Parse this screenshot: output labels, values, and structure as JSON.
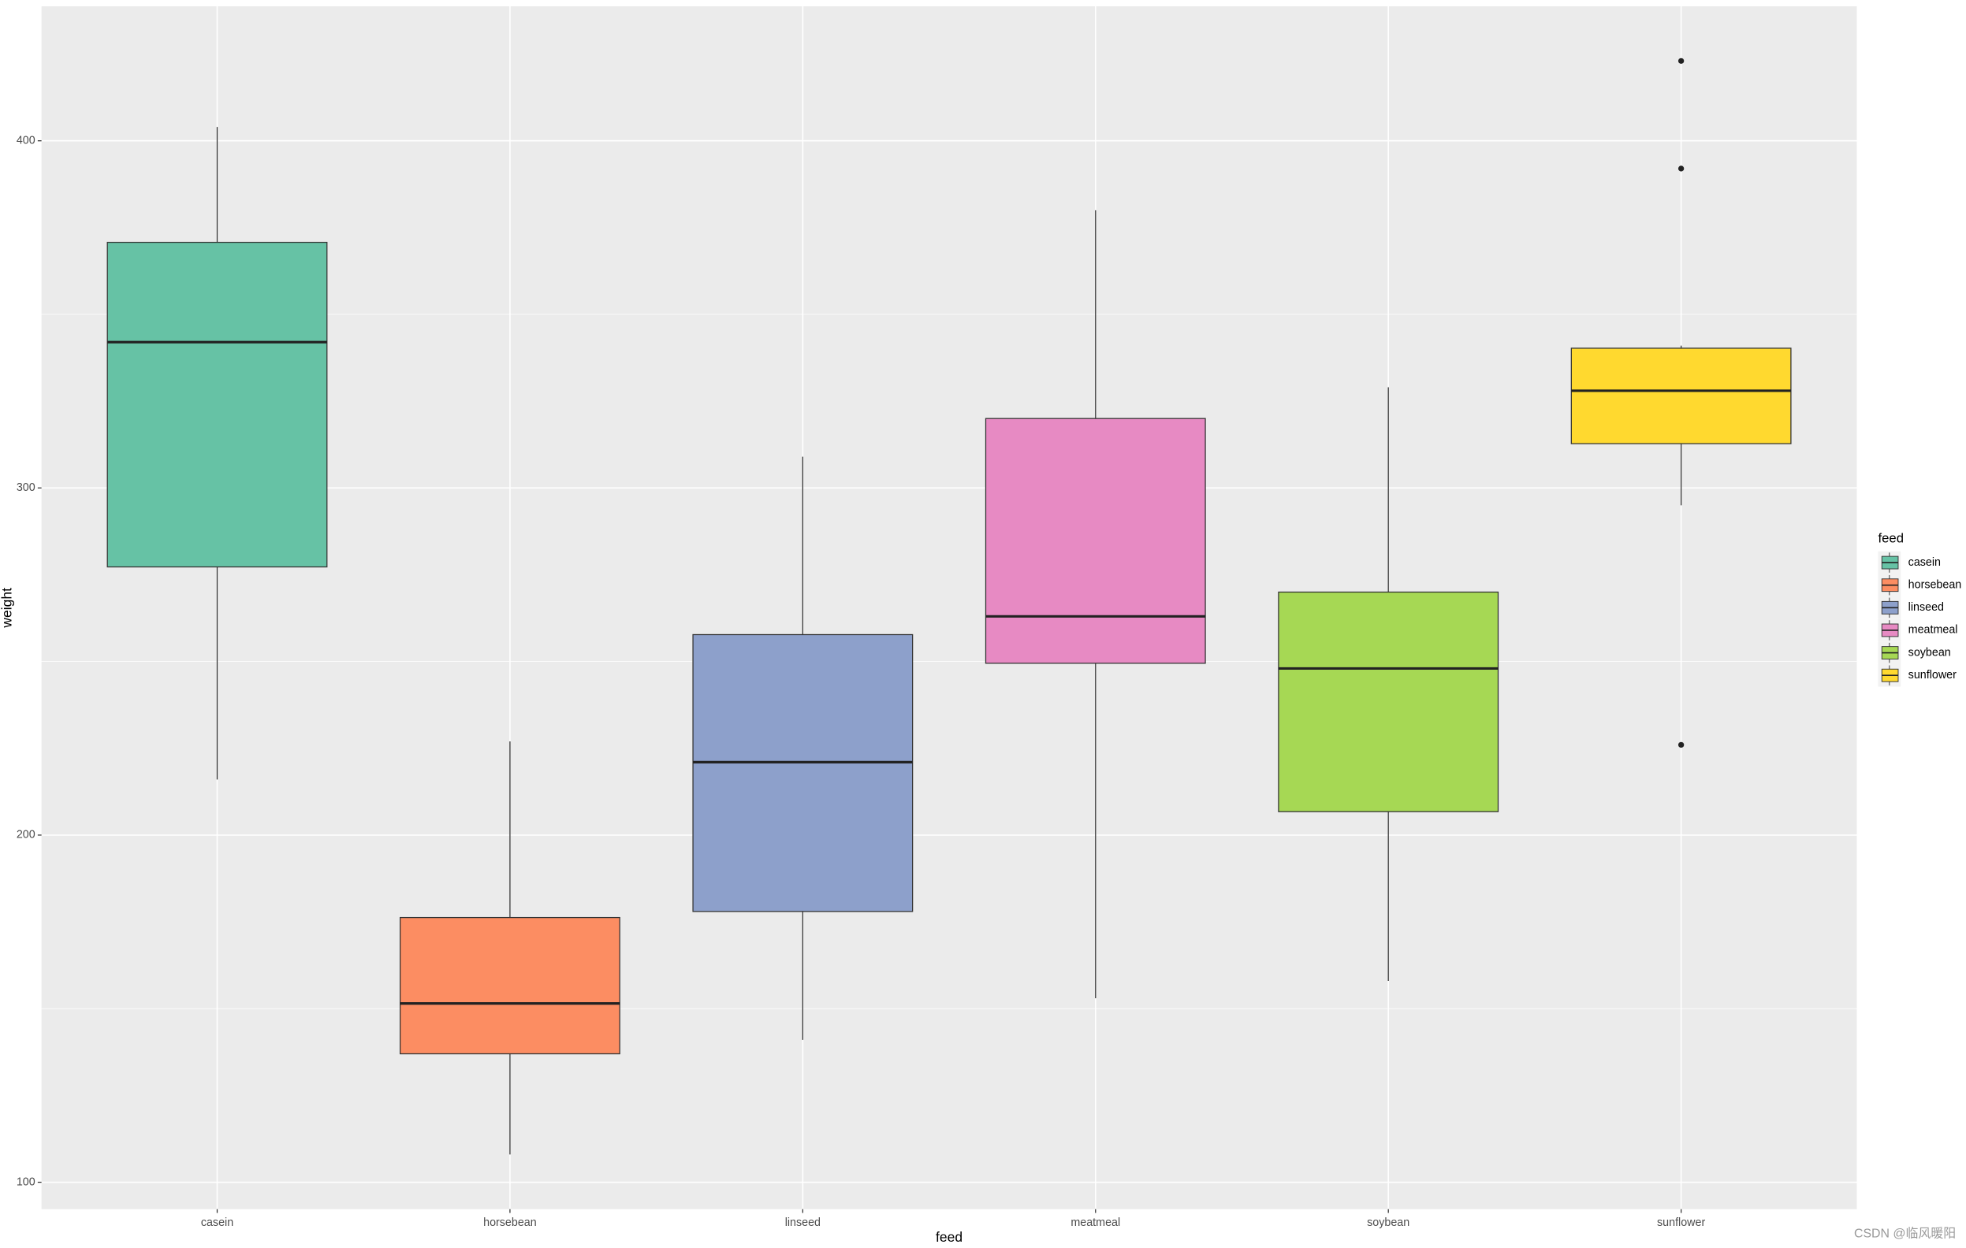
{
  "chart_data": {
    "type": "boxplot",
    "x_label": "feed",
    "y_label": "weight",
    "legend_title": "feed",
    "watermark": "CSDN @临风暖阳",
    "categories": [
      "casein",
      "horsebean",
      "linseed",
      "meatmeal",
      "soybean",
      "sunflower"
    ],
    "colors": [
      "#66C2A5",
      "#FC8D62",
      "#8DA0CB",
      "#E78AC3",
      "#A6D854",
      "#FFD92F"
    ],
    "whisker_low": [
      216,
      108,
      141,
      153,
      158,
      295
    ],
    "q1": [
      277.25,
      137,
      178,
      249.5,
      206.75,
      312.75
    ],
    "median": [
      342,
      151.5,
      221,
      263,
      248,
      328
    ],
    "q3": [
      370.75,
      176.25,
      257.75,
      320,
      270,
      340.25
    ],
    "whisker_high": [
      404,
      227,
      309,
      380,
      329,
      341
    ],
    "outliers": [
      [],
      [],
      [],
      [],
      [],
      [
        226,
        392,
        423
      ]
    ],
    "ylim": [
      92.25,
      438.75
    ],
    "yticks": [
      100,
      200,
      300,
      400
    ],
    "minor_yticks": [
      150,
      250,
      350
    ],
    "grid": true,
    "legend_position": "right"
  }
}
